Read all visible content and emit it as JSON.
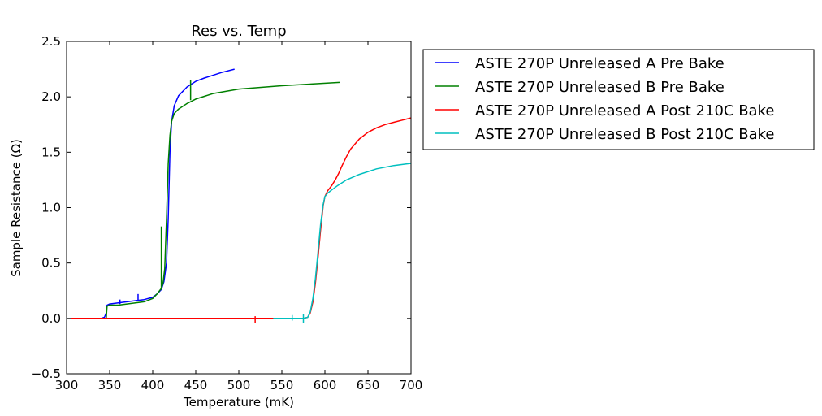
{
  "chart_data": {
    "type": "line",
    "title": "Res vs. Temp",
    "xlabel": "Temperature (mK)",
    "ylabel": "Sample Resistance (Ω)",
    "xlim": [
      300,
      700
    ],
    "ylim": [
      -0.5,
      2.5
    ],
    "xticks": [
      "300",
      "350",
      "400",
      "450",
      "500",
      "550",
      "600",
      "650",
      "700"
    ],
    "yticks": [
      "−0.5",
      "0.0",
      "0.5",
      "1.0",
      "1.5",
      "2.0",
      "2.5"
    ],
    "legend_position": "outside-right",
    "grid": false,
    "series": [
      {
        "name": "ASTE 270P Unreleased A Pre Bake",
        "color": "#0000ff",
        "x": [
          340,
          344,
          346,
          347,
          350,
          360,
          370,
          380,
          390,
          400,
          405,
          410,
          413,
          416,
          418,
          420,
          422,
          425,
          430,
          440,
          450,
          460,
          480,
          495
        ],
        "y": [
          0.0,
          0.01,
          0.05,
          0.12,
          0.13,
          0.14,
          0.15,
          0.16,
          0.17,
          0.19,
          0.22,
          0.26,
          0.33,
          0.5,
          0.9,
          1.5,
          1.78,
          1.92,
          2.01,
          2.09,
          2.14,
          2.17,
          2.22,
          2.25
        ]
      },
      {
        "name": "ASTE 270P Unreleased B Pre Bake",
        "color": "#008000",
        "x": [
          346,
          347,
          350,
          360,
          370,
          380,
          390,
          400,
          405,
          410,
          412,
          414,
          416,
          418,
          420,
          422,
          425,
          430,
          440,
          450,
          470,
          500,
          550,
          617
        ],
        "y": [
          0.0,
          0.11,
          0.12,
          0.12,
          0.13,
          0.14,
          0.15,
          0.18,
          0.22,
          0.27,
          0.32,
          0.45,
          0.9,
          1.4,
          1.65,
          1.78,
          1.85,
          1.89,
          1.94,
          1.98,
          2.03,
          2.07,
          2.1,
          2.13
        ]
      },
      {
        "name": "ASTE 270P Unreleased A Post 210C Bake",
        "color": "#ff0000",
        "x": [
          305,
          400,
          500,
          560,
          575,
          580,
          583,
          586,
          589,
          592,
          595,
          598,
          600,
          603,
          608,
          612,
          616,
          620,
          625,
          630,
          640,
          650,
          660,
          670,
          680,
          690,
          700
        ],
        "y": [
          0.0,
          0.0,
          0.0,
          0.0,
          0.0,
          0.01,
          0.05,
          0.15,
          0.32,
          0.55,
          0.8,
          1.02,
          1.1,
          1.15,
          1.2,
          1.25,
          1.31,
          1.38,
          1.46,
          1.53,
          1.62,
          1.68,
          1.72,
          1.75,
          1.77,
          1.79,
          1.81
        ]
      },
      {
        "name": "ASTE 270P Unreleased B Post 210C Bake",
        "color": "#00bfbf",
        "x": [
          540,
          560,
          575,
          580,
          583,
          586,
          589,
          592,
          595,
          598,
          600,
          603,
          608,
          615,
          625,
          640,
          660,
          680,
          700
        ],
        "y": [
          0.0,
          0.0,
          0.0,
          0.01,
          0.06,
          0.18,
          0.36,
          0.6,
          0.85,
          1.03,
          1.1,
          1.13,
          1.16,
          1.2,
          1.25,
          1.3,
          1.35,
          1.38,
          1.4
        ]
      }
    ],
    "spikes": [
      {
        "series": 0,
        "x": 383,
        "low": 0.16,
        "high": 0.22
      },
      {
        "series": 0,
        "x": 362,
        "low": 0.13,
        "high": 0.17
      },
      {
        "series": 1,
        "x": 410,
        "low": 0.27,
        "high": 0.83
      },
      {
        "series": 1,
        "x": 444,
        "low": 1.97,
        "high": 2.15
      },
      {
        "series": 2,
        "x": 519,
        "low": -0.04,
        "high": 0.02
      },
      {
        "series": 3,
        "x": 562,
        "low": -0.02,
        "high": 0.03
      },
      {
        "series": 3,
        "x": 575,
        "low": -0.04,
        "high": 0.04
      }
    ]
  }
}
